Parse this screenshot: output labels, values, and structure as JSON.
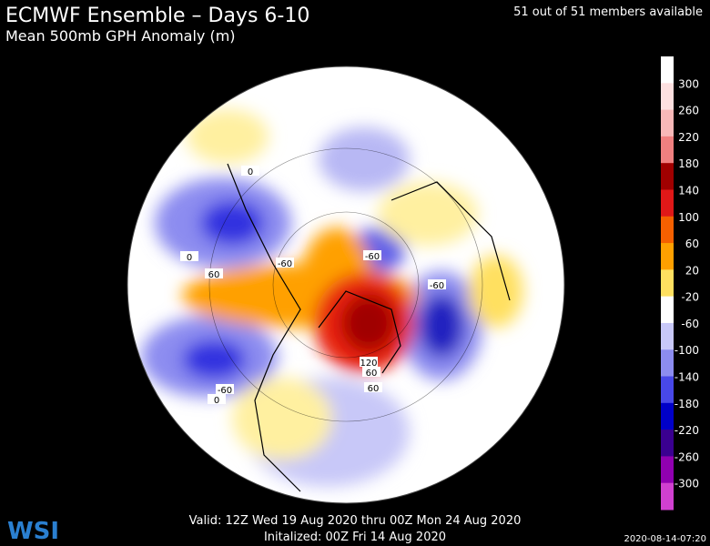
{
  "header": {
    "title": "ECMWF Ensemble – Days 6-10",
    "subtitle": "Mean 500mb GPH Anomaly (m)",
    "members": "51 out of 51 members available"
  },
  "colorbar": {
    "labels": [
      "300",
      "260",
      "220",
      "180",
      "140",
      "100",
      "60",
      "20",
      "-20",
      "-60",
      "-100",
      "-140",
      "-180",
      "-220",
      "-260",
      "-300"
    ]
  },
  "map": {
    "contour_labels": [
      "0",
      "-60",
      "0",
      "60",
      "-60",
      "-60",
      "-60",
      "120",
      "60",
      "60",
      "0"
    ]
  },
  "footer": {
    "valid": "Valid: 12Z Wed 19 Aug 2020 thru 00Z Mon 24 Aug 2020",
    "initialized": "Initalized: 00Z Fri 14 Aug 2020",
    "timestamp": "2020-08-14-07:20",
    "logo": "WSI"
  }
}
